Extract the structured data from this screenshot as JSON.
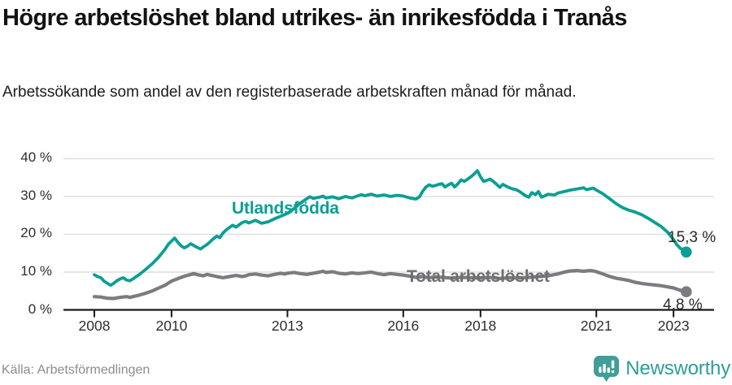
{
  "footer": {
    "source": "Källa: Arbetsförmedlingen",
    "brand": "Newsworthy"
  },
  "colors": {
    "teal": "#0b9f94",
    "gray": "#7b7b80",
    "grid": "#dedede",
    "axis": "#1a1a1a",
    "brand_teal": "#3f9e99"
  },
  "chart_data": {
    "type": "line",
    "title": "Högre arbetslöshet bland utrikes- än inrikesfödda i Tranås",
    "subtitle": "Arbetssökande som andel av den registerbaserade arbetskraften månad för månad.",
    "xlabel": "",
    "ylabel": "",
    "x_ticks": [
      2008,
      2010,
      2013,
      2016,
      2018,
      2021,
      2023
    ],
    "y_ticks": [
      0,
      10,
      20,
      30,
      40
    ],
    "y_tick_suffix": " %",
    "xlim": [
      2007.2,
      2024.05
    ],
    "ylim": [
      0,
      41.9
    ],
    "grid": "horizontal",
    "legend_position": "inline-labels",
    "series": [
      {
        "name": "Utlandsfödda",
        "color_key": "teal",
        "width": 3.8,
        "end_label": "15,3 %",
        "end_value": 15.3,
        "points": [
          [
            2008.0,
            9.3
          ],
          [
            2008.08,
            8.8
          ],
          [
            2008.17,
            8.5
          ],
          [
            2008.25,
            7.6
          ],
          [
            2008.33,
            7.1
          ],
          [
            2008.42,
            6.5
          ],
          [
            2008.5,
            7.0
          ],
          [
            2008.58,
            7.7
          ],
          [
            2008.67,
            8.2
          ],
          [
            2008.75,
            8.5
          ],
          [
            2008.83,
            7.9
          ],
          [
            2008.92,
            7.7
          ],
          [
            2009.0,
            8.2
          ],
          [
            2009.17,
            9.4
          ],
          [
            2009.33,
            10.7
          ],
          [
            2009.5,
            12.2
          ],
          [
            2009.67,
            14.0
          ],
          [
            2009.83,
            16.0
          ],
          [
            2009.92,
            17.4
          ],
          [
            2010.0,
            18.2
          ],
          [
            2010.08,
            19.0
          ],
          [
            2010.17,
            17.8
          ],
          [
            2010.25,
            16.9
          ],
          [
            2010.33,
            16.4
          ],
          [
            2010.42,
            16.9
          ],
          [
            2010.5,
            17.5
          ],
          [
            2010.58,
            17.0
          ],
          [
            2010.67,
            16.5
          ],
          [
            2010.75,
            16.1
          ],
          [
            2010.83,
            16.7
          ],
          [
            2010.92,
            17.3
          ],
          [
            2011.0,
            18.0
          ],
          [
            2011.08,
            18.8
          ],
          [
            2011.17,
            19.5
          ],
          [
            2011.25,
            19.1
          ],
          [
            2011.33,
            20.3
          ],
          [
            2011.42,
            21.2
          ],
          [
            2011.5,
            21.8
          ],
          [
            2011.58,
            22.4
          ],
          [
            2011.67,
            21.9
          ],
          [
            2011.75,
            22.5
          ],
          [
            2011.83,
            23.1
          ],
          [
            2011.92,
            23.4
          ],
          [
            2012.0,
            23.0
          ],
          [
            2012.17,
            23.7
          ],
          [
            2012.33,
            22.9
          ],
          [
            2012.5,
            23.3
          ],
          [
            2012.67,
            24.1
          ],
          [
            2012.83,
            24.8
          ],
          [
            2013.0,
            25.5
          ],
          [
            2013.17,
            26.8
          ],
          [
            2013.33,
            28.2
          ],
          [
            2013.5,
            29.4
          ],
          [
            2013.58,
            29.9
          ],
          [
            2013.67,
            29.5
          ],
          [
            2013.83,
            29.8
          ],
          [
            2013.92,
            30.1
          ],
          [
            2014.0,
            29.6
          ],
          [
            2014.17,
            29.9
          ],
          [
            2014.33,
            29.4
          ],
          [
            2014.5,
            30.0
          ],
          [
            2014.67,
            29.6
          ],
          [
            2014.83,
            30.2
          ],
          [
            2014.92,
            30.5
          ],
          [
            2015.0,
            30.2
          ],
          [
            2015.17,
            30.6
          ],
          [
            2015.33,
            30.1
          ],
          [
            2015.5,
            30.4
          ],
          [
            2015.67,
            30.0
          ],
          [
            2015.83,
            30.3
          ],
          [
            2016.0,
            30.1
          ],
          [
            2016.17,
            29.6
          ],
          [
            2016.33,
            29.3
          ],
          [
            2016.42,
            29.9
          ],
          [
            2016.5,
            31.3
          ],
          [
            2016.58,
            32.4
          ],
          [
            2016.67,
            33.1
          ],
          [
            2016.75,
            32.7
          ],
          [
            2016.83,
            32.9
          ],
          [
            2016.92,
            33.2
          ],
          [
            2017.0,
            33.4
          ],
          [
            2017.08,
            32.5
          ],
          [
            2017.17,
            33.1
          ],
          [
            2017.25,
            33.5
          ],
          [
            2017.33,
            32.5
          ],
          [
            2017.42,
            33.4
          ],
          [
            2017.5,
            34.4
          ],
          [
            2017.58,
            34.0
          ],
          [
            2017.67,
            34.6
          ],
          [
            2017.75,
            35.2
          ],
          [
            2017.83,
            35.9
          ],
          [
            2017.92,
            36.8
          ],
          [
            2018.0,
            35.2
          ],
          [
            2018.08,
            34.0
          ],
          [
            2018.17,
            34.3
          ],
          [
            2018.25,
            34.6
          ],
          [
            2018.33,
            34.0
          ],
          [
            2018.42,
            33.2
          ],
          [
            2018.5,
            32.4
          ],
          [
            2018.58,
            33.2
          ],
          [
            2018.67,
            32.7
          ],
          [
            2018.75,
            32.3
          ],
          [
            2018.83,
            32.0
          ],
          [
            2018.92,
            31.8
          ],
          [
            2019.0,
            31.4
          ],
          [
            2019.17,
            30.2
          ],
          [
            2019.25,
            29.8
          ],
          [
            2019.33,
            31.0
          ],
          [
            2019.42,
            30.5
          ],
          [
            2019.5,
            31.3
          ],
          [
            2019.58,
            29.8
          ],
          [
            2019.67,
            30.2
          ],
          [
            2019.75,
            30.6
          ],
          [
            2019.92,
            30.4
          ],
          [
            2020.0,
            30.9
          ],
          [
            2020.17,
            31.3
          ],
          [
            2020.33,
            31.7
          ],
          [
            2020.5,
            32.0
          ],
          [
            2020.67,
            32.3
          ],
          [
            2020.75,
            31.8
          ],
          [
            2020.92,
            32.2
          ],
          [
            2021.0,
            31.7
          ],
          [
            2021.17,
            30.7
          ],
          [
            2021.33,
            29.5
          ],
          [
            2021.5,
            28.2
          ],
          [
            2021.67,
            27.1
          ],
          [
            2021.83,
            26.4
          ],
          [
            2022.0,
            25.9
          ],
          [
            2022.17,
            25.2
          ],
          [
            2022.33,
            24.3
          ],
          [
            2022.5,
            23.2
          ],
          [
            2022.67,
            22.1
          ],
          [
            2022.83,
            20.7
          ],
          [
            2023.0,
            18.6
          ],
          [
            2023.08,
            17.3
          ],
          [
            2023.17,
            16.3
          ],
          [
            2023.25,
            15.9
          ],
          [
            2023.33,
            15.3
          ]
        ]
      },
      {
        "name": "Total arbetslöshet",
        "color_key": "gray",
        "width": 4.2,
        "end_label": "4,8 %",
        "end_value": 4.8,
        "points": [
          [
            2008.0,
            3.5
          ],
          [
            2008.17,
            3.4
          ],
          [
            2008.33,
            3.1
          ],
          [
            2008.5,
            3.0
          ],
          [
            2008.67,
            3.3
          ],
          [
            2008.83,
            3.5
          ],
          [
            2008.92,
            3.3
          ],
          [
            2009.0,
            3.5
          ],
          [
            2009.17,
            3.9
          ],
          [
            2009.33,
            4.4
          ],
          [
            2009.5,
            5.0
          ],
          [
            2009.67,
            5.8
          ],
          [
            2009.83,
            6.5
          ],
          [
            2009.92,
            7.1
          ],
          [
            2010.0,
            7.6
          ],
          [
            2010.17,
            8.3
          ],
          [
            2010.33,
            8.9
          ],
          [
            2010.5,
            9.4
          ],
          [
            2010.58,
            9.6
          ],
          [
            2010.67,
            9.3
          ],
          [
            2010.83,
            9.0
          ],
          [
            2010.92,
            9.4
          ],
          [
            2011.0,
            9.2
          ],
          [
            2011.17,
            8.8
          ],
          [
            2011.33,
            8.5
          ],
          [
            2011.5,
            8.8
          ],
          [
            2011.67,
            9.1
          ],
          [
            2011.83,
            8.8
          ],
          [
            2011.92,
            9.0
          ],
          [
            2012.0,
            9.3
          ],
          [
            2012.17,
            9.5
          ],
          [
            2012.33,
            9.2
          ],
          [
            2012.5,
            9.0
          ],
          [
            2012.67,
            9.4
          ],
          [
            2012.83,
            9.7
          ],
          [
            2012.92,
            9.5
          ],
          [
            2013.0,
            9.7
          ],
          [
            2013.17,
            9.9
          ],
          [
            2013.33,
            9.6
          ],
          [
            2013.5,
            9.4
          ],
          [
            2013.67,
            9.7
          ],
          [
            2013.83,
            10.0
          ],
          [
            2013.92,
            10.2
          ],
          [
            2014.0,
            9.9
          ],
          [
            2014.17,
            10.1
          ],
          [
            2014.33,
            9.7
          ],
          [
            2014.5,
            9.5
          ],
          [
            2014.67,
            9.8
          ],
          [
            2014.83,
            9.6
          ],
          [
            2015.0,
            9.8
          ],
          [
            2015.17,
            10.0
          ],
          [
            2015.33,
            9.6
          ],
          [
            2015.5,
            9.3
          ],
          [
            2015.67,
            9.6
          ],
          [
            2015.83,
            9.4
          ],
          [
            2016.0,
            9.2
          ],
          [
            2016.17,
            8.9
          ],
          [
            2016.33,
            8.6
          ],
          [
            2016.5,
            8.8
          ],
          [
            2016.67,
            8.5
          ],
          [
            2016.83,
            8.7
          ],
          [
            2017.0,
            8.6
          ],
          [
            2017.25,
            8.4
          ],
          [
            2017.5,
            8.6
          ],
          [
            2017.75,
            8.5
          ],
          [
            2018.0,
            8.4
          ],
          [
            2018.25,
            8.6
          ],
          [
            2018.5,
            8.3
          ],
          [
            2018.75,
            8.5
          ],
          [
            2019.0,
            8.4
          ],
          [
            2019.25,
            8.6
          ],
          [
            2019.5,
            8.8
          ],
          [
            2019.75,
            9.0
          ],
          [
            2020.0,
            9.5
          ],
          [
            2020.17,
            10.0
          ],
          [
            2020.33,
            10.3
          ],
          [
            2020.5,
            10.4
          ],
          [
            2020.67,
            10.2
          ],
          [
            2020.83,
            10.4
          ],
          [
            2020.92,
            10.3
          ],
          [
            2021.0,
            10.1
          ],
          [
            2021.17,
            9.5
          ],
          [
            2021.33,
            8.9
          ],
          [
            2021.5,
            8.4
          ],
          [
            2021.67,
            8.1
          ],
          [
            2021.83,
            7.8
          ],
          [
            2022.0,
            7.3
          ],
          [
            2022.17,
            7.0
          ],
          [
            2022.33,
            6.8
          ],
          [
            2022.5,
            6.6
          ],
          [
            2022.67,
            6.4
          ],
          [
            2022.83,
            6.1
          ],
          [
            2023.0,
            5.8
          ],
          [
            2023.08,
            5.5
          ],
          [
            2023.17,
            5.2
          ],
          [
            2023.25,
            5.0
          ],
          [
            2023.33,
            4.8
          ]
        ]
      }
    ]
  }
}
